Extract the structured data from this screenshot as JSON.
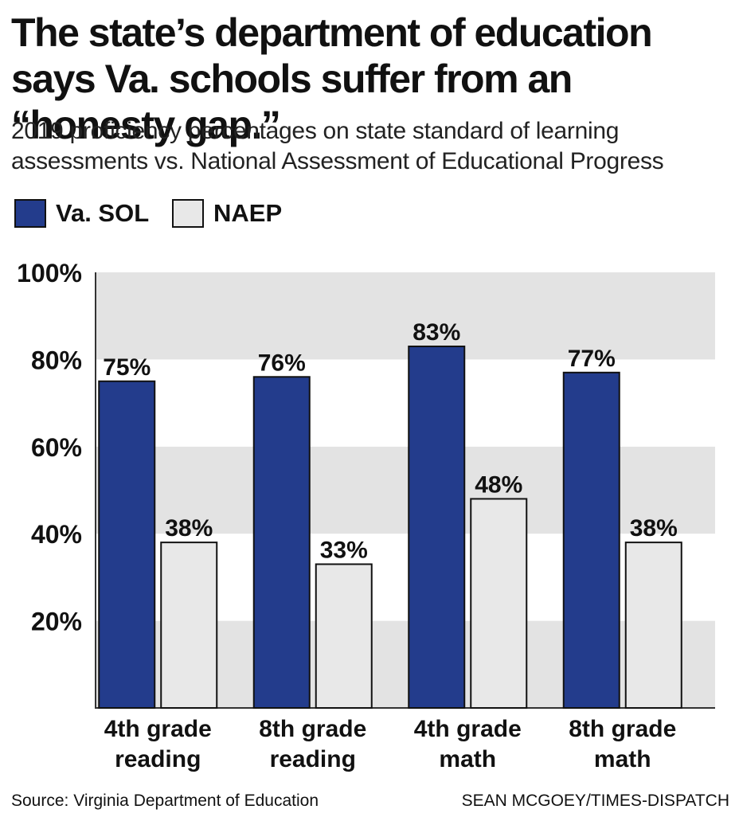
{
  "title": "The state’s department of education says Va. schools suffer from an “honesty gap.”",
  "subtitle": "2019 proficiency percentages on state standard of learning assessments vs. National Assessment of Educational Progress",
  "legend": [
    {
      "label": "Va. SOL",
      "color": "#233c8c"
    },
    {
      "label": "NAEP",
      "color": "#e8e8e8"
    }
  ],
  "chart_data": {
    "type": "bar",
    "categories": [
      [
        "4th grade",
        "reading"
      ],
      [
        "8th grade",
        "reading"
      ],
      [
        "4th grade",
        "math"
      ],
      [
        "8th grade",
        "math"
      ]
    ],
    "series": [
      {
        "name": "Va. SOL",
        "values": [
          75,
          76,
          83,
          77
        ],
        "labels": [
          "75%",
          "76%",
          "83%",
          "77%"
        ],
        "color": "#233c8c"
      },
      {
        "name": "NAEP",
        "values": [
          38,
          33,
          48,
          38
        ],
        "labels": [
          "38%",
          "33%",
          "48%",
          "38%"
        ],
        "color": "#e8e8e8"
      }
    ],
    "ylim": [
      0,
      100
    ],
    "yticks": [
      20,
      40,
      60,
      80,
      100
    ],
    "ytick_labels": [
      "20%",
      "40%",
      "60%",
      "80%",
      "100%"
    ],
    "band_colors": [
      "#e3e3e3",
      "#ffffff"
    ],
    "grid": false,
    "legend_position": "top-left"
  },
  "source": "Source: Virginia Department of Education",
  "credit": "SEAN MCGOEY/TIMES-DISPATCH"
}
